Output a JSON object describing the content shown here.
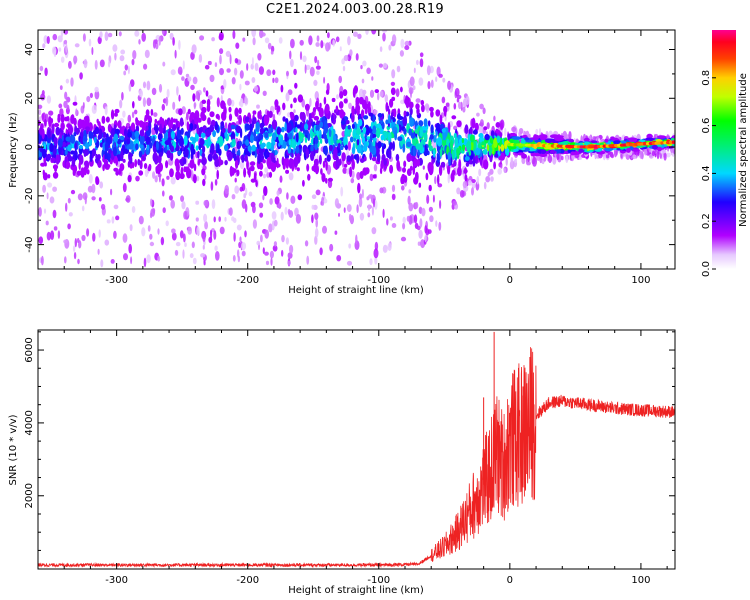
{
  "title": "C2E1.2024.003.00.28.R19",
  "chart_data": [
    {
      "type": "heatmap",
      "name": "spectrogram",
      "xlabel": "Height of straight line (km)",
      "ylabel": "Frequency (Hz)",
      "xlim": [
        -360,
        126
      ],
      "ylim": [
        -50,
        48
      ],
      "xticks": [
        -300,
        -200,
        -100,
        0,
        100
      ],
      "yticks": [
        -40,
        -20,
        0,
        20,
        40
      ],
      "colorbar": {
        "label": "Normalized spectral amplitude",
        "range": [
          0,
          1
        ],
        "ticks": [
          0.0,
          0.2,
          0.4,
          0.6,
          0.8
        ],
        "colors": [
          "#ffffff",
          "#b000ff",
          "#0000ff",
          "#00e5ff",
          "#00ff00",
          "#ffff00",
          "#ff8000",
          "#ff0000",
          "#ff00a0"
        ]
      },
      "description_points": [
        {
          "x": -360,
          "center_hz": 0,
          "noise_spread_hz": 48,
          "core_halfwidth_hz": 8,
          "peak_amp": 0.35
        },
        {
          "x": -80,
          "center_hz": 5,
          "noise_spread_hz": 48,
          "core_halfwidth_hz": 12,
          "peak_amp": 0.45
        },
        {
          "x": -40,
          "center_hz": 0,
          "noise_spread_hz": 25,
          "core_halfwidth_hz": 8,
          "peak_amp": 0.55
        },
        {
          "x": 0,
          "center_hz": 1,
          "noise_spread_hz": 8,
          "core_halfwidth_hz": 3,
          "peak_amp": 0.75
        },
        {
          "x": 60,
          "center_hz": 0,
          "noise_spread_hz": 4,
          "core_halfwidth_hz": 1.5,
          "peak_amp": 0.95
        },
        {
          "x": 126,
          "center_hz": 2,
          "noise_spread_hz": 4,
          "core_halfwidth_hz": 1.5,
          "peak_amp": 0.9
        }
      ]
    },
    {
      "type": "line",
      "name": "snr",
      "xlabel": "Height of straight line (km)",
      "ylabel": "SNR (10 * v/v)",
      "xlim": [
        -360,
        126
      ],
      "ylim": [
        -10,
        6550
      ],
      "xticks": [
        -300,
        -200,
        -100,
        0,
        100
      ],
      "yticks": [
        2000,
        4000,
        6000
      ],
      "color": "#ee2222",
      "envelope": {
        "x": [
          -360,
          -100,
          -70,
          -50,
          -40,
          -30,
          -20,
          -15,
          -10,
          -5,
          0,
          5,
          10,
          20,
          30,
          40,
          60,
          80,
          100,
          126
        ],
        "y": [
          100,
          100,
          120,
          600,
          1000,
          1600,
          2300,
          2600,
          3200,
          2800,
          3500,
          3600,
          3700,
          4200,
          4550,
          4600,
          4500,
          4400,
          4350,
          4300
        ]
      },
      "spikes": [
        {
          "x": -12,
          "y": 6500
        },
        {
          "x": -20,
          "y": 4700
        },
        {
          "x": 10,
          "y": 5000
        }
      ]
    }
  ]
}
